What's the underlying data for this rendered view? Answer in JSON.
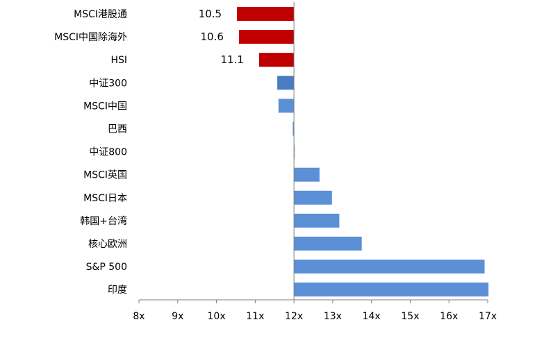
{
  "chart_data": {
    "type": "bar",
    "orientation": "horizontal",
    "baseline": 12,
    "categories": [
      "MSCI港股通",
      "MSCI中国除海外",
      "HSI",
      "中证300",
      "MSCI中国",
      "巴西",
      "中证800",
      "MSCI英国",
      "MSCI日本",
      "韩国+台湾",
      "核心欧洲",
      "S&P 500",
      "印度"
    ],
    "values": [
      10.53,
      10.58,
      11.1,
      11.57,
      11.6,
      11.97,
      12.01,
      12.66,
      12.98,
      13.17,
      13.75,
      16.92,
      17.02
    ],
    "data_labels": [
      "10.5",
      "10.6",
      "11.1",
      "",
      "",
      "",
      "",
      "",
      "",
      "",
      "",
      "",
      ""
    ],
    "highlighted": [
      true,
      true,
      true,
      false,
      false,
      false,
      false,
      false,
      false,
      false,
      false,
      false,
      false
    ],
    "xlim": [
      8,
      17
    ],
    "xticks": [
      "8x",
      "9x",
      "10x",
      "11x",
      "12x",
      "13x",
      "14x",
      "15x",
      "16x",
      "17x"
    ],
    "colors": {
      "highlight": "#C00000",
      "base": "#5B8FD6",
      "zhongzheng300": "#4A7CC4"
    },
    "title": "",
    "xlabel": "",
    "ylabel": "",
    "grid": false,
    "legend": "none"
  }
}
